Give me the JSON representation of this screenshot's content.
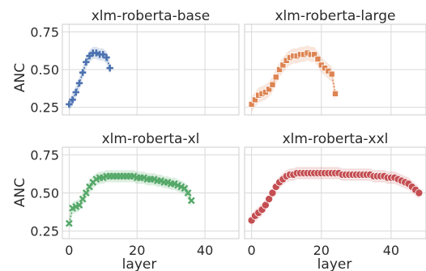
{
  "figure": {
    "ylabel": "ANC",
    "xlabel": "layer",
    "yticks": [
      0.25,
      0.5,
      0.75
    ],
    "ytick_labels": [
      "0.25",
      "0.50",
      "0.75"
    ],
    "xticks": [
      0,
      20,
      40
    ],
    "xtick_labels": [
      "0",
      "20",
      "40"
    ]
  },
  "chart_data": [
    {
      "type": "line",
      "title": "xlm-roberta-base",
      "marker": "plus",
      "color": "#4c72b0",
      "xlim": [
        -2,
        50
      ],
      "ylim": [
        0.2,
        0.8
      ],
      "x": [
        0,
        1,
        2,
        3,
        4,
        5,
        6,
        7,
        8,
        9,
        10,
        11,
        12
      ],
      "y": [
        0.27,
        0.3,
        0.35,
        0.41,
        0.48,
        0.55,
        0.59,
        0.61,
        0.61,
        0.6,
        0.6,
        0.58,
        0.51
      ],
      "band": 0.04
    },
    {
      "type": "line",
      "title": "xlm-roberta-large",
      "marker": "square",
      "color": "#dd8452",
      "xlim": [
        -2,
        50
      ],
      "ylim": [
        0.2,
        0.8
      ],
      "x": [
        0,
        1,
        2,
        3,
        4,
        5,
        6,
        7,
        8,
        9,
        10,
        11,
        12,
        13,
        14,
        15,
        16,
        17,
        18,
        19,
        20,
        21,
        22,
        23,
        24
      ],
      "y": [
        0.27,
        0.3,
        0.33,
        0.34,
        0.35,
        0.37,
        0.4,
        0.45,
        0.5,
        0.53,
        0.56,
        0.58,
        0.59,
        0.59,
        0.6,
        0.6,
        0.61,
        0.6,
        0.6,
        0.57,
        0.53,
        0.51,
        0.49,
        0.47,
        0.34
      ],
      "band": 0.05
    },
    {
      "type": "line",
      "title": "xlm-roberta-xl",
      "marker": "x",
      "color": "#55a868",
      "xlim": [
        -2,
        50
      ],
      "ylim": [
        0.2,
        0.8
      ],
      "x": [
        0,
        1,
        2,
        3,
        4,
        5,
        6,
        7,
        8,
        9,
        10,
        11,
        12,
        13,
        14,
        15,
        16,
        17,
        18,
        19,
        20,
        21,
        22,
        23,
        24,
        25,
        26,
        27,
        28,
        29,
        30,
        31,
        32,
        33,
        34,
        35,
        36
      ],
      "y": [
        0.3,
        0.4,
        0.41,
        0.42,
        0.46,
        0.5,
        0.54,
        0.57,
        0.59,
        0.6,
        0.6,
        0.61,
        0.61,
        0.61,
        0.61,
        0.61,
        0.61,
        0.61,
        0.61,
        0.61,
        0.6,
        0.6,
        0.6,
        0.59,
        0.59,
        0.59,
        0.58,
        0.58,
        0.57,
        0.57,
        0.56,
        0.56,
        0.55,
        0.54,
        0.53,
        0.5,
        0.45
      ],
      "band": 0.04
    },
    {
      "type": "line",
      "title": "xlm-roberta-xxl",
      "marker": "circle",
      "color": "#c44e52",
      "xlim": [
        -2,
        50
      ],
      "ylim": [
        0.2,
        0.8
      ],
      "x": [
        0,
        1,
        2,
        3,
        4,
        5,
        6,
        7,
        8,
        9,
        10,
        11,
        12,
        13,
        14,
        15,
        16,
        17,
        18,
        19,
        20,
        21,
        22,
        23,
        24,
        25,
        26,
        27,
        28,
        29,
        30,
        31,
        32,
        33,
        34,
        35,
        36,
        37,
        38,
        39,
        40,
        41,
        42,
        43,
        44,
        45,
        46,
        47,
        48
      ],
      "y": [
        0.32,
        0.35,
        0.37,
        0.39,
        0.42,
        0.46,
        0.5,
        0.54,
        0.57,
        0.59,
        0.61,
        0.62,
        0.62,
        0.63,
        0.63,
        0.63,
        0.63,
        0.63,
        0.63,
        0.63,
        0.63,
        0.63,
        0.63,
        0.63,
        0.63,
        0.63,
        0.62,
        0.62,
        0.62,
        0.62,
        0.62,
        0.62,
        0.62,
        0.62,
        0.62,
        0.61,
        0.61,
        0.61,
        0.61,
        0.6,
        0.6,
        0.6,
        0.59,
        0.58,
        0.57,
        0.56,
        0.54,
        0.52,
        0.5
      ],
      "band": 0.04
    }
  ]
}
